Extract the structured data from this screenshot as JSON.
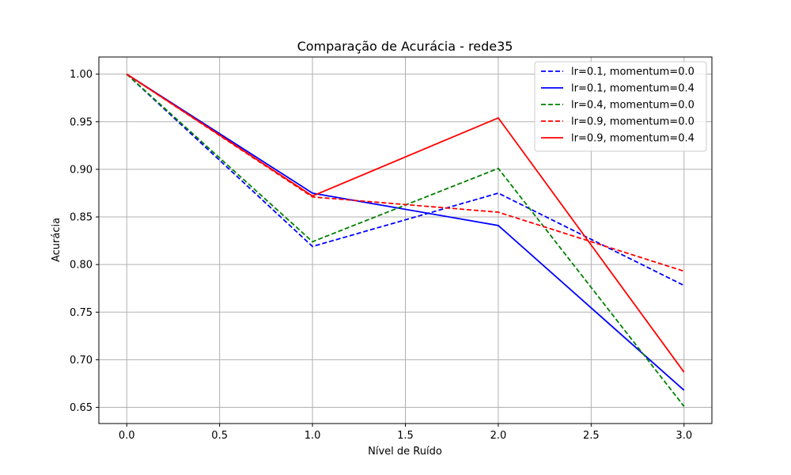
{
  "chart_data": {
    "type": "line",
    "title": "Comparação de Acurácia - rede35",
    "xlabel": "Nível de Ruído",
    "ylabel": "Acurácia",
    "x": [
      0.0,
      1.0,
      2.0,
      3.0
    ],
    "xlim": [
      -0.15,
      3.15
    ],
    "ylim": [
      0.633,
      1.018
    ],
    "xticks": [
      0.0,
      0.5,
      1.0,
      1.5,
      2.0,
      2.5,
      3.0
    ],
    "xtick_labels": [
      "0.0",
      "0.5",
      "1.0",
      "1.5",
      "2.0",
      "2.5",
      "3.0"
    ],
    "yticks": [
      0.65,
      0.7,
      0.75,
      0.8,
      0.85,
      0.9,
      0.95,
      1.0
    ],
    "ytick_labels": [
      "0.65",
      "0.70",
      "0.75",
      "0.80",
      "0.85",
      "0.90",
      "0.95",
      "1.00"
    ],
    "grid": true,
    "legend_position": "top-right",
    "series": [
      {
        "name": "lr=0.1, momentum=0.0",
        "color": "#0000ff",
        "dashed": true,
        "values": [
          1.0,
          0.819,
          0.875,
          0.778
        ]
      },
      {
        "name": "lr=0.1, momentum=0.4",
        "color": "#0000ff",
        "dashed": false,
        "values": [
          1.0,
          0.875,
          0.841,
          0.668
        ]
      },
      {
        "name": "lr=0.4, momentum=0.0",
        "color": "#008000",
        "dashed": true,
        "values": [
          1.0,
          0.824,
          0.901,
          0.651
        ]
      },
      {
        "name": "lr=0.9, momentum=0.0",
        "color": "#ff0000",
        "dashed": true,
        "values": [
          1.0,
          0.871,
          0.855,
          0.793
        ]
      },
      {
        "name": "lr=0.9, momentum=0.4",
        "color": "#ff0000",
        "dashed": false,
        "values": [
          1.0,
          0.872,
          0.954,
          0.687
        ]
      }
    ]
  }
}
